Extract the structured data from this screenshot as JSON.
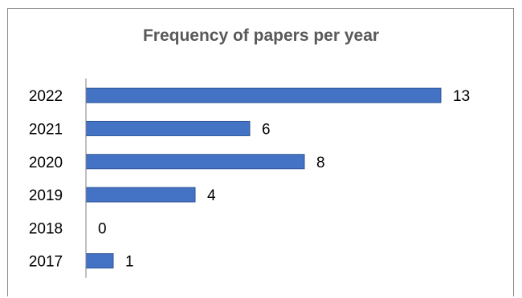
{
  "chart_data": {
    "type": "bar",
    "orientation": "horizontal",
    "title": "Frequency of papers per year",
    "categories": [
      "2022",
      "2021",
      "2020",
      "2019",
      "2018",
      "2017"
    ],
    "values": [
      13,
      6,
      8,
      4,
      0,
      1
    ],
    "xlabel": "",
    "ylabel": "",
    "xlim": [
      0,
      13
    ],
    "grid": false,
    "legend": "none",
    "data_labels": true
  },
  "colors": {
    "bar_fill": "#4472c4",
    "bar_edge": "#2e5597",
    "axis": "#7f7f7f",
    "title": "#595959",
    "text": "#000000"
  }
}
